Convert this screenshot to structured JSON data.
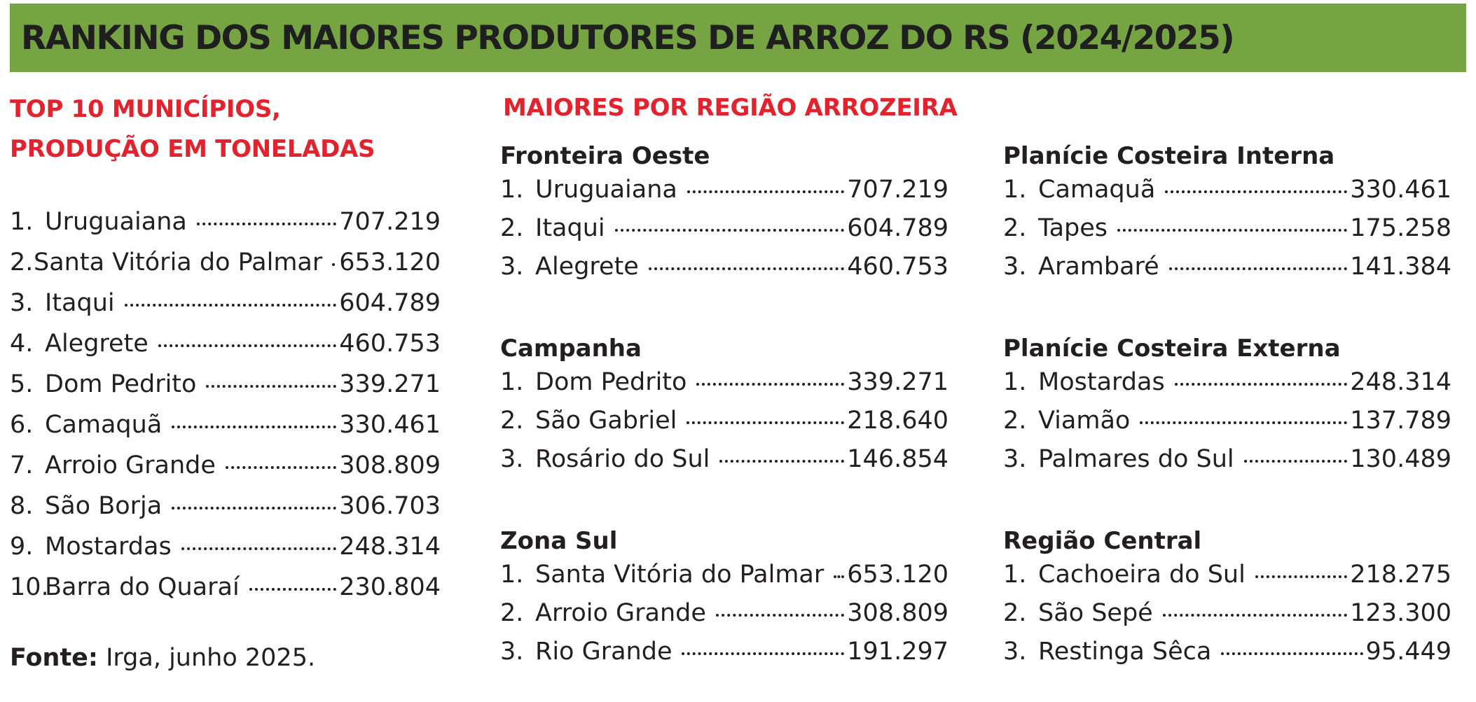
{
  "header": {
    "title": "RANKING DOS MAIORES PRODUTORES DE ARROZ DO RS (2024/2025)"
  },
  "top10": {
    "heading_line1": "TOP 10 MUNICÍPIOS,",
    "heading_line2": "PRODUÇÃO EM TONELADAS",
    "items": [
      {
        "rank": "1.",
        "name": "Uruguaiana",
        "value": "707.219"
      },
      {
        "rank": "2.",
        "name": "Santa Vitória do Palmar",
        "value": "653.120"
      },
      {
        "rank": "3.",
        "name": "Itaqui",
        "value": "604.789"
      },
      {
        "rank": "4.",
        "name": "Alegrete",
        "value": "460.753"
      },
      {
        "rank": "5.",
        "name": "Dom Pedrito",
        "value": "339.271"
      },
      {
        "rank": "6.",
        "name": "Camaquã",
        "value": "330.461"
      },
      {
        "rank": "7.",
        "name": "Arroio Grande",
        "value": "308.809"
      },
      {
        "rank": "8.",
        "name": "São Borja",
        "value": "306.703"
      },
      {
        "rank": "9.",
        "name": "Mostardas",
        "value": "248.314"
      },
      {
        "rank": "10.",
        "name": "Barra do Quaraí",
        "value": "230.804"
      }
    ]
  },
  "regions": {
    "heading": "MAIORES POR REGIÃO ARROZEIRA",
    "groups": [
      {
        "title": "Fronteira Oeste",
        "items": [
          {
            "rank": "1.",
            "name": "Uruguaiana",
            "value": "707.219"
          },
          {
            "rank": "2.",
            "name": "Itaqui",
            "value": "604.789"
          },
          {
            "rank": "3.",
            "name": "Alegrete",
            "value": "460.753"
          }
        ]
      },
      {
        "title": "Campanha",
        "items": [
          {
            "rank": "1.",
            "name": "Dom Pedrito",
            "value": "339.271"
          },
          {
            "rank": "2.",
            "name": "São Gabriel",
            "value": "218.640"
          },
          {
            "rank": "3.",
            "name": "Rosário do Sul",
            "value": "146.854"
          }
        ]
      },
      {
        "title": "Zona Sul",
        "items": [
          {
            "rank": "1.",
            "name": "Santa Vitória do Palmar",
            "value": "653.120"
          },
          {
            "rank": "2.",
            "name": "Arroio Grande",
            "value": "308.809"
          },
          {
            "rank": "3.",
            "name": "Rio Grande",
            "value": "191.297"
          }
        ]
      },
      {
        "title": "Planície Costeira Interna",
        "items": [
          {
            "rank": "1.",
            "name": "Camaquã",
            "value": "330.461"
          },
          {
            "rank": "2.",
            "name": "Tapes",
            "value": "175.258"
          },
          {
            "rank": "3.",
            "name": "Arambaré",
            "value": "141.384"
          }
        ]
      },
      {
        "title": "Planície Costeira Externa",
        "items": [
          {
            "rank": "1.",
            "name": "Mostardas",
            "value": "248.314"
          },
          {
            "rank": "2.",
            "name": "Viamão",
            "value": "137.789"
          },
          {
            "rank": "3.",
            "name": "Palmares do Sul",
            "value": "130.489"
          }
        ]
      },
      {
        "title": "Região Central",
        "items": [
          {
            "rank": "1.",
            "name": "Cachoeira do Sul",
            "value": "218.275"
          },
          {
            "rank": "2.",
            "name": "São Sepé",
            "value": "123.300"
          },
          {
            "rank": "3.",
            "name": "Restinga Sêca",
            "value": "95.449"
          }
        ]
      }
    ]
  },
  "source": {
    "label": "Fonte:",
    "text": "Irga, junho 2025."
  },
  "colors": {
    "banner": "#77a442",
    "heading_red": "#e3222d",
    "text": "#231f20"
  }
}
